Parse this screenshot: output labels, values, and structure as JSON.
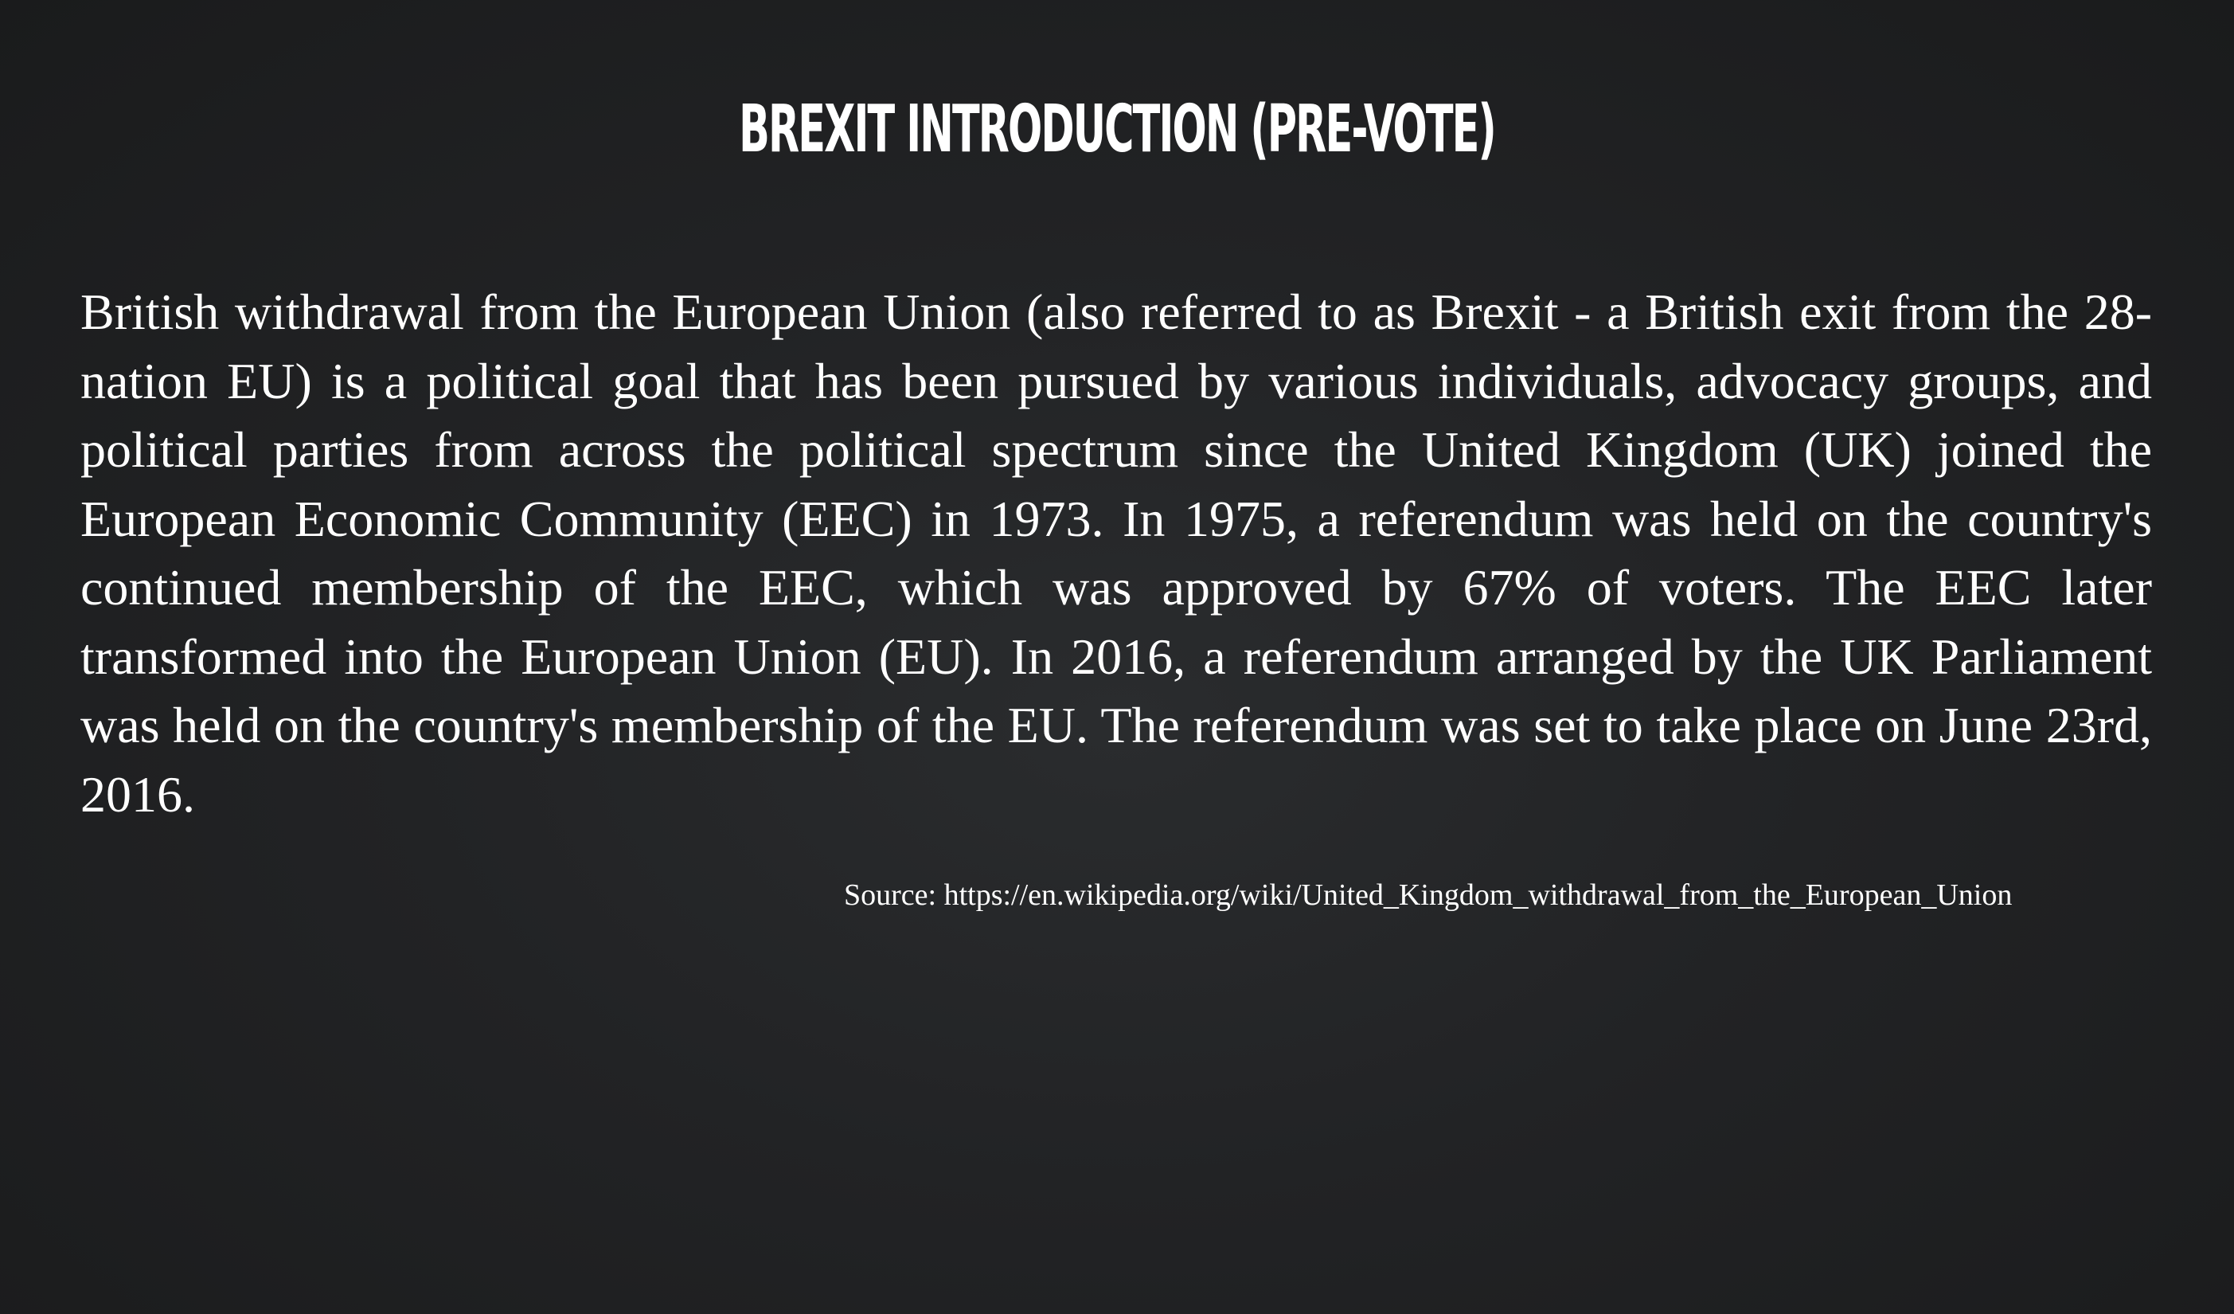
{
  "slide": {
    "title": "BREXIT INTRODUCTION (PRE-VOTE)",
    "body": "British withdrawal from the European Union (also referred to as Brexit - a British exit from the 28-nation EU) is a political goal that has been pursued by various individuals, advocacy groups, and political parties from across the political spectrum since the United Kingdom (UK) joined the European Economic Community (EEC) in 1973. In 1975, a referendum was held on the country's continued membership of the EEC, which was approved by 67% of voters. The EEC later transformed into the European Union (EU). In 2016, a referendum arranged by the UK Parliament was held on the country's membership of the EU. The referendum was set to take place on June 23rd, 2016.",
    "source": "Source: https://en.wikipedia.org/wiki/United_Kingdom_withdrawal_from_the_European_Union"
  },
  "colors": {
    "background": "#222325",
    "text": "#ffffff"
  }
}
